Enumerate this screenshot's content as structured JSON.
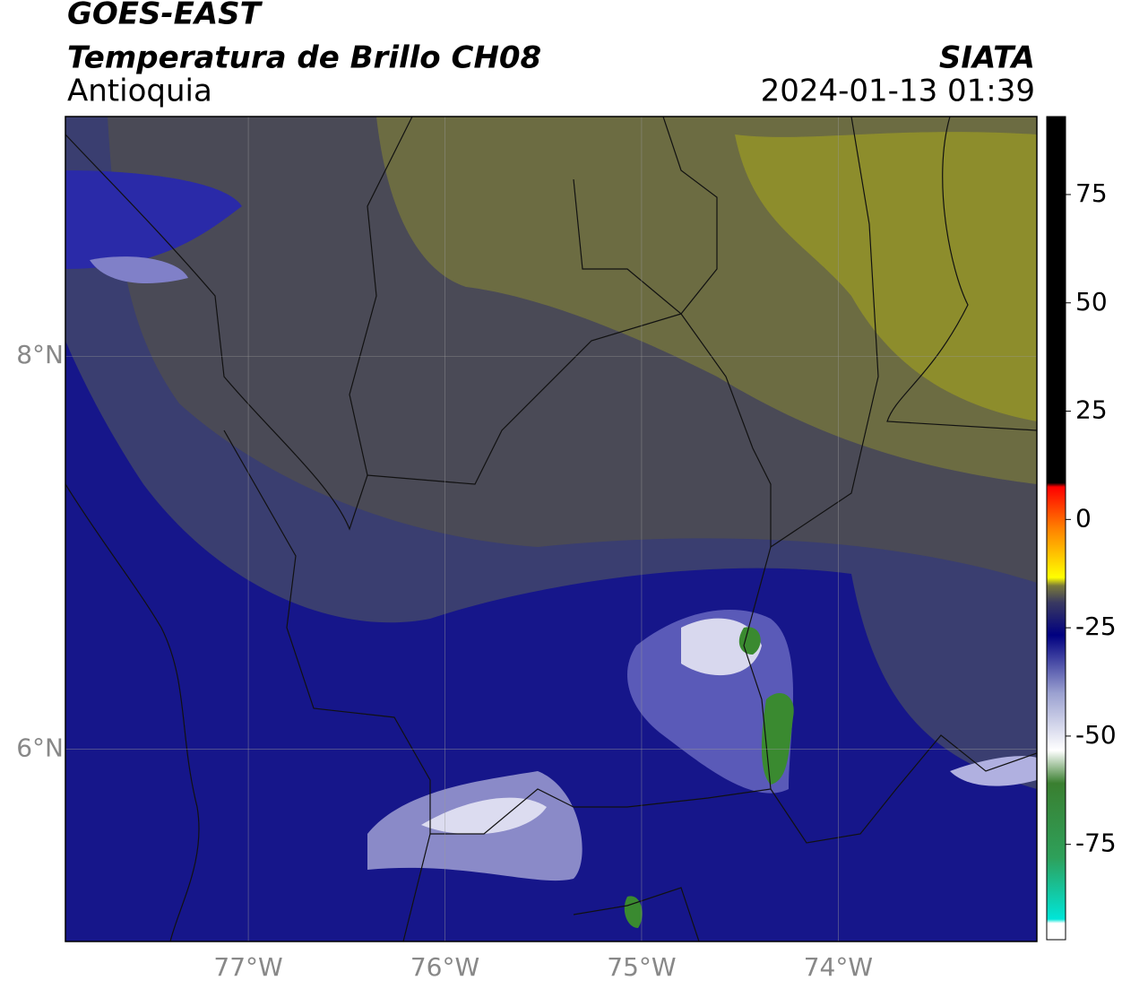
{
  "header": {
    "title": "GOES-EAST",
    "subtitle": "Temperatura de Brillo CH08",
    "region": "Antioquia",
    "source": "SIATA",
    "datetime": "2024-01-13 01:39"
  },
  "map": {
    "lonlim": [
      -77.93,
      -72.99
    ],
    "latlim": [
      5.02,
      9.22
    ],
    "lon_ticks": [
      {
        "value": -77,
        "label": "77°W"
      },
      {
        "value": -76,
        "label": "76°W"
      },
      {
        "value": -75,
        "label": "75°W"
      },
      {
        "value": -74,
        "label": "74°W"
      }
    ],
    "lat_ticks": [
      {
        "value": 8,
        "label": "8°N"
      },
      {
        "value": 6,
        "label": "6°N"
      }
    ],
    "grid": true
  },
  "colorbar": {
    "lim": [
      -97,
      93
    ],
    "ticks": [
      75,
      50,
      25,
      0,
      -25,
      -50,
      -75
    ]
  }
}
